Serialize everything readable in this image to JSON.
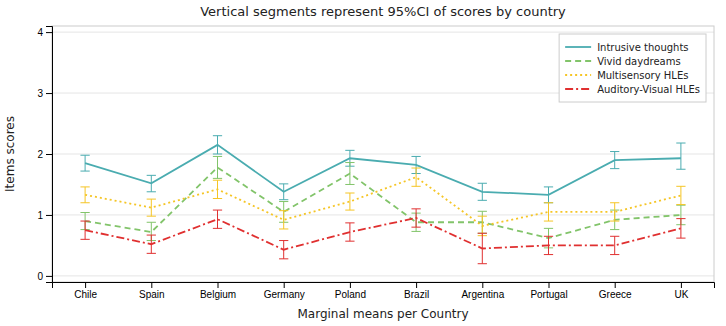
{
  "chart_data": {
    "type": "line",
    "title": "Vertical segments represent 95%CI of scores by country",
    "x_label": "Marginal means per Country",
    "y_label": "Items scores",
    "categories": [
      "Chile",
      "Spain",
      "Belgium",
      "Germany",
      "Poland",
      "Brazil",
      "Argentina",
      "Portugal",
      "Greece",
      "UK"
    ],
    "series": [
      {
        "name": "Intrusive thoughts",
        "color": "#4AACB0",
        "line_style": "solid",
        "values": [
          1.85,
          1.52,
          2.15,
          1.38,
          1.93,
          1.82,
          1.38,
          1.33,
          1.9,
          1.93
        ],
        "ci_low": [
          1.72,
          1.38,
          2.0,
          1.25,
          1.8,
          1.68,
          1.24,
          1.2,
          1.76,
          1.75
        ],
        "ci_high": [
          1.98,
          1.65,
          2.3,
          1.51,
          2.06,
          1.96,
          1.52,
          1.46,
          2.04,
          2.18
        ]
      },
      {
        "name": "Vivid daydreams",
        "color": "#82C46A",
        "line_style": "dashed",
        "values": [
          0.9,
          0.72,
          1.78,
          1.05,
          1.68,
          0.88,
          0.88,
          0.62,
          0.92,
          1.0
        ],
        "ci_low": [
          0.76,
          0.58,
          1.6,
          0.88,
          1.5,
          0.73,
          0.7,
          0.46,
          0.76,
          0.84
        ],
        "ci_high": [
          1.04,
          0.88,
          1.96,
          1.22,
          1.86,
          1.03,
          1.06,
          0.78,
          1.08,
          1.16
        ]
      },
      {
        "name": "Multisensory HLEs",
        "color": "#F5C525",
        "line_style": "dotted",
        "values": [
          1.33,
          1.12,
          1.42,
          0.92,
          1.22,
          1.62,
          0.82,
          1.05,
          1.05,
          1.32
        ],
        "ci_low": [
          1.2,
          0.98,
          1.27,
          0.77,
          1.08,
          1.47,
          0.66,
          0.9,
          0.9,
          1.17
        ],
        "ci_high": [
          1.46,
          1.26,
          1.57,
          1.07,
          1.36,
          1.77,
          0.98,
          1.2,
          1.2,
          1.47
        ]
      },
      {
        "name": "Auditory-Visual HLEs",
        "color": "#E03030",
        "line_style": "dashdot",
        "values": [
          0.75,
          0.52,
          0.93,
          0.43,
          0.72,
          0.95,
          0.45,
          0.5,
          0.5,
          0.78
        ],
        "ci_low": [
          0.6,
          0.37,
          0.78,
          0.28,
          0.57,
          0.8,
          0.2,
          0.35,
          0.35,
          0.62
        ],
        "ci_high": [
          0.9,
          0.67,
          1.08,
          0.58,
          0.87,
          1.1,
          0.7,
          0.65,
          0.65,
          0.94
        ]
      }
    ],
    "ylim": [
      -0.1,
      4.1
    ],
    "yticks": [
      0,
      1,
      2,
      3,
      4
    ],
    "grid": true,
    "legend": "upper right"
  }
}
